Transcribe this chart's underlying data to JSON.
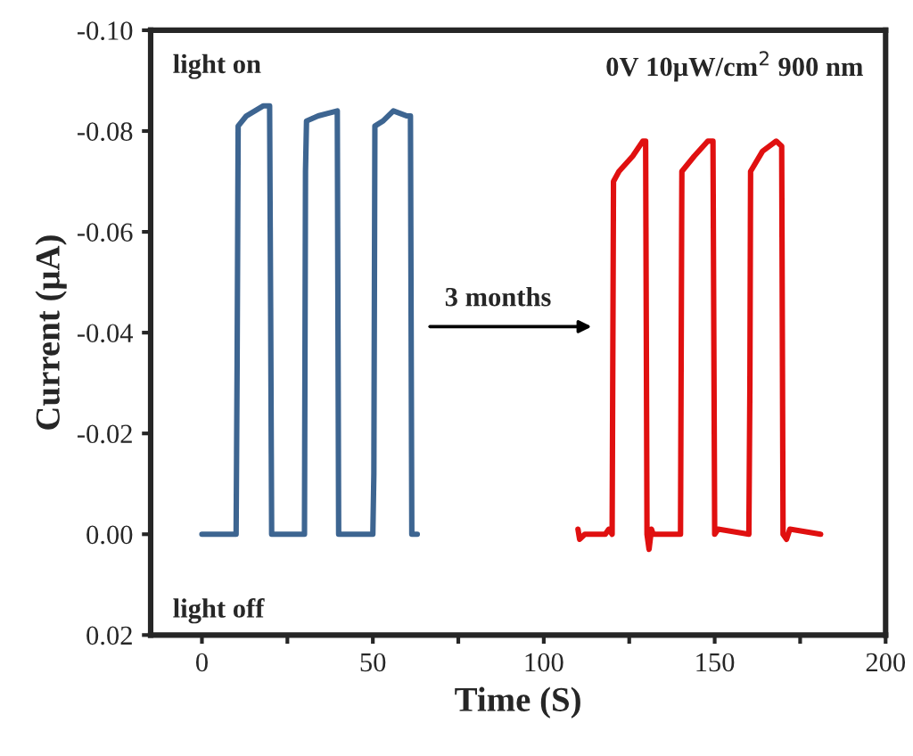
{
  "chart_data": {
    "type": "line",
    "xlabel": "Time (S)",
    "ylabel": "Current (μA)",
    "xlim": [
      -15,
      200
    ],
    "ylim": [
      0.02,
      -0.1
    ],
    "xticks": [
      0,
      {
        "value": 25,
        "label": null
      },
      50,
      {
        "value": 75,
        "label": null
      },
      100,
      {
        "value": 125,
        "label": null
      },
      150,
      {
        "value": 175,
        "label": null
      },
      200
    ],
    "yticks": [
      {
        "value": -0.1,
        "label": "-0.10"
      },
      {
        "value": -0.08,
        "label": "-0.08"
      },
      {
        "value": -0.06,
        "label": "-0.06"
      },
      {
        "value": -0.04,
        "label": "-0.04"
      },
      {
        "value": -0.02,
        "label": "-0.02"
      },
      {
        "value": 0.0,
        "label": "0.00"
      },
      {
        "value": 0.02,
        "label": "0.02"
      }
    ],
    "grid": false,
    "legend": false,
    "marker": "none",
    "line_style": "solid",
    "annotations": [
      "light on",
      "light off",
      "0V 10μW/cm$^{2}$ 900 nm",
      "3 months"
    ],
    "series": [
      {
        "color": "#3d6591",
        "x": [
          0,
          10,
          10.3,
          10.6,
          13,
          18,
          19.8,
          20.1,
          20.4,
          30,
          30.3,
          30.6,
          34,
          39.6,
          40,
          50,
          50.3,
          50.6,
          53,
          56,
          60,
          61,
          61.4,
          63
        ],
        "values": [
          0,
          0,
          -0.034,
          -0.081,
          -0.083,
          -0.085,
          -0.085,
          -0.045,
          0,
          0,
          -0.072,
          -0.082,
          -0.083,
          -0.084,
          0,
          0,
          -0.012,
          -0.081,
          -0.082,
          -0.084,
          -0.083,
          -0.083,
          0,
          0
        ]
      },
      {
        "color": "#e01010",
        "x": [
          110,
          110.5,
          112,
          118,
          119,
          120,
          120.4,
          122,
          126,
          129,
          129.8,
          130.2,
          130.8,
          131.5,
          132,
          140,
          140.4,
          144,
          148,
          149.5,
          150,
          151,
          160,
          160.3,
          160.5,
          164,
          168,
          169.6,
          170,
          171,
          172,
          181
        ],
        "values": [
          -0.001,
          0.001,
          0,
          0,
          -0.001,
          0,
          -0.07,
          -0.072,
          -0.075,
          -0.078,
          -0.078,
          0,
          0.003,
          -0.001,
          0,
          0,
          -0.072,
          -0.075,
          -0.078,
          -0.078,
          0,
          -0.001,
          0,
          -0.03,
          -0.072,
          -0.076,
          -0.078,
          -0.077,
          0,
          0.001,
          -0.001,
          0
        ]
      }
    ]
  }
}
